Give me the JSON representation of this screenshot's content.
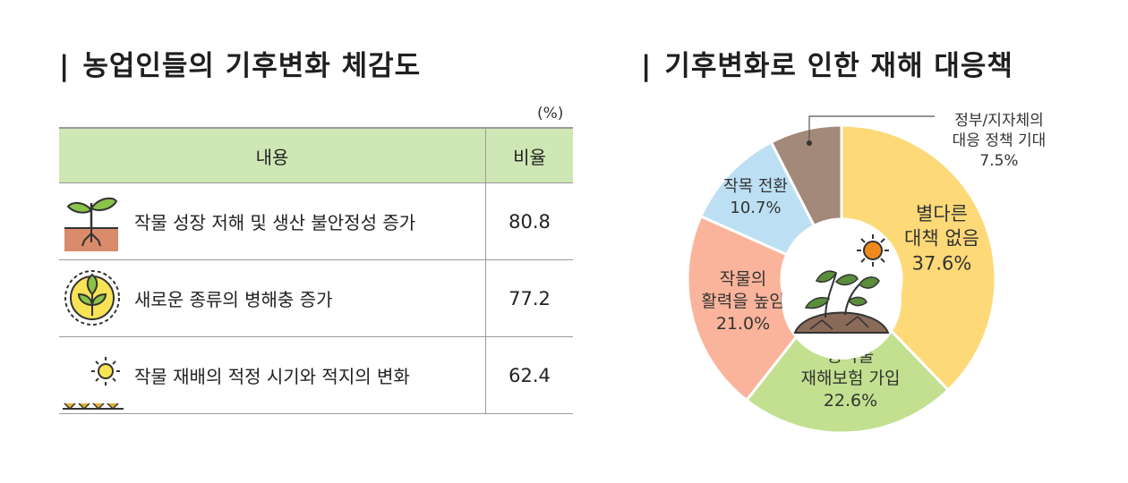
{
  "left_panel": {
    "title": "농업인들의 기후변화 체감도",
    "unit": "(%)",
    "header": {
      "content": "내용",
      "ratio": "비율"
    },
    "rows": [
      {
        "icon": "sprout-icon",
        "label": "작물 성장 저해 및 생산 불안정성 증가",
        "value": "80.8"
      },
      {
        "icon": "leaf-circle-icon",
        "label": "새로운 종류의 병해충 증가",
        "value": "77.2"
      },
      {
        "icon": "sun-ground-icon",
        "label": "작물 재배의 적정 시기와 적지의 변화",
        "value": "62.4"
      }
    ]
  },
  "right_panel": {
    "title": "기후변화로 인한 재해 대응책"
  },
  "colors": {
    "header_bg": "#cfe7b4",
    "slice_yellow": "#fdd978",
    "slice_green": "#c2e08f",
    "slice_salmon": "#fbb49c",
    "slice_blue": "#bcdff3",
    "slice_brown": "#a28979"
  },
  "chart_data": [
    {
      "type": "table",
      "title": "농업인들의 기후변화 체감도",
      "unit": "(%)",
      "columns": [
        "내용",
        "비율"
      ],
      "rows": [
        [
          "작물 성장 저해 및 생산 불안정성 증가",
          80.8
        ],
        [
          "새로운 종류의 병해충 증가",
          77.2
        ],
        [
          "작물 재배의 적정 시기와 적지의 변화",
          62.4
        ]
      ]
    },
    {
      "type": "pie",
      "title": "기후변화로 인한 재해 대응책",
      "donut": true,
      "slices": [
        {
          "label_lines": [
            "별다른",
            "대책 없음"
          ],
          "value": 37.6,
          "value_label": "37.6%",
          "color": "#fdd978"
        },
        {
          "label_lines": [
            "농작물",
            "재해보험 가입"
          ],
          "value": 22.6,
          "value_label": "22.6%",
          "color": "#c2e08f"
        },
        {
          "label_lines": [
            "작물의",
            "활력을 높임"
          ],
          "value": 21.0,
          "value_label": "21.0%",
          "color": "#fbb49c"
        },
        {
          "label_lines": [
            "작목 전환"
          ],
          "value": 10.7,
          "value_label": "10.7%",
          "color": "#bcdff3"
        },
        {
          "label_lines": [
            "정부/지자체의",
            "대응 정책 기대"
          ],
          "value": 7.5,
          "value_label": "7.5%",
          "color": "#a28979"
        }
      ]
    }
  ]
}
